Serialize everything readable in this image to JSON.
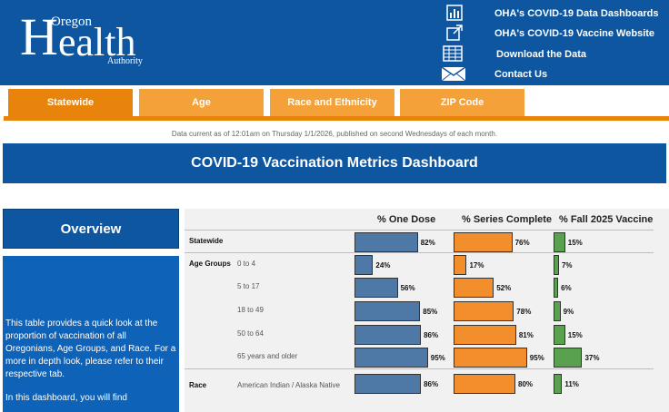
{
  "header": {
    "logo": {
      "oregon": "Oregon",
      "h": "H",
      "ealth": "ealth",
      "authority": "Authority"
    },
    "links": [
      {
        "label": "OHA's COVID-19 Data Dashboards",
        "icon": "bar-chart-icon"
      },
      {
        "label": "OHA's COVID-19 Vaccine Website",
        "icon": "external-link-icon"
      },
      {
        "label": "Download the Data",
        "icon": "table-icon"
      },
      {
        "label": "Contact Us",
        "icon": "envelope-icon"
      }
    ]
  },
  "tabs": [
    {
      "label": "Statewide",
      "active": true
    },
    {
      "label": "Age",
      "active": false
    },
    {
      "label": "Race and Ethnicity",
      "active": false
    },
    {
      "label": "ZIP Code",
      "active": false
    }
  ],
  "data_currency": "Data current as of 12:01am on Thursday 1/1/2026, published on second Wednesdays of each month.",
  "banner_title": "COVID-19 Vaccination Metrics Dashboard",
  "overview": {
    "title": "Overview",
    "paragraph1": "This table provides a quick look at the proportion of vaccination of all Oregonians, Age Groups, and Race. For a more in depth look, please refer to their respective tab.",
    "paragraph2": "In this dashboard, you will find"
  },
  "table": {
    "columns": [
      "% One Dose",
      "% Series Complete",
      "% Fall 2025 Vaccine"
    ],
    "colors": {
      "one_dose": "#4e79a7",
      "series_complete": "#f28e2b",
      "fall_vaccine": "#59a14f"
    },
    "rows": [
      {
        "group": "Statewide",
        "sub": "",
        "one_dose": 82,
        "series": 76,
        "fall": 15
      },
      {
        "group": "Age Groups",
        "sub": "0 to 4",
        "one_dose": 24,
        "series": 17,
        "fall": 7
      },
      {
        "group": "",
        "sub": "5 to 17",
        "one_dose": 56,
        "series": 52,
        "fall": 6
      },
      {
        "group": "",
        "sub": "18 to 49",
        "one_dose": 85,
        "series": 78,
        "fall": 9
      },
      {
        "group": "",
        "sub": "50 to 64",
        "one_dose": 86,
        "series": 81,
        "fall": 15
      },
      {
        "group": "",
        "sub": "65 years and older",
        "one_dose": 95,
        "series": 95,
        "fall": 37
      },
      {
        "group": "Race",
        "sub": "American Indian / Alaska Native",
        "one_dose": 86,
        "series": 80,
        "fall": 11
      }
    ],
    "value_labels": [
      [
        "82%",
        "76%",
        "15%"
      ],
      [
        "24%",
        "17%",
        "7%"
      ],
      [
        "56%",
        "52%",
        "6%"
      ],
      [
        "85%",
        "78%",
        "9%"
      ],
      [
        "86%",
        "81%",
        "15%"
      ],
      [
        "95%",
        "95%",
        "37%"
      ],
      [
        "86%",
        "80%",
        "11%"
      ]
    ]
  }
}
